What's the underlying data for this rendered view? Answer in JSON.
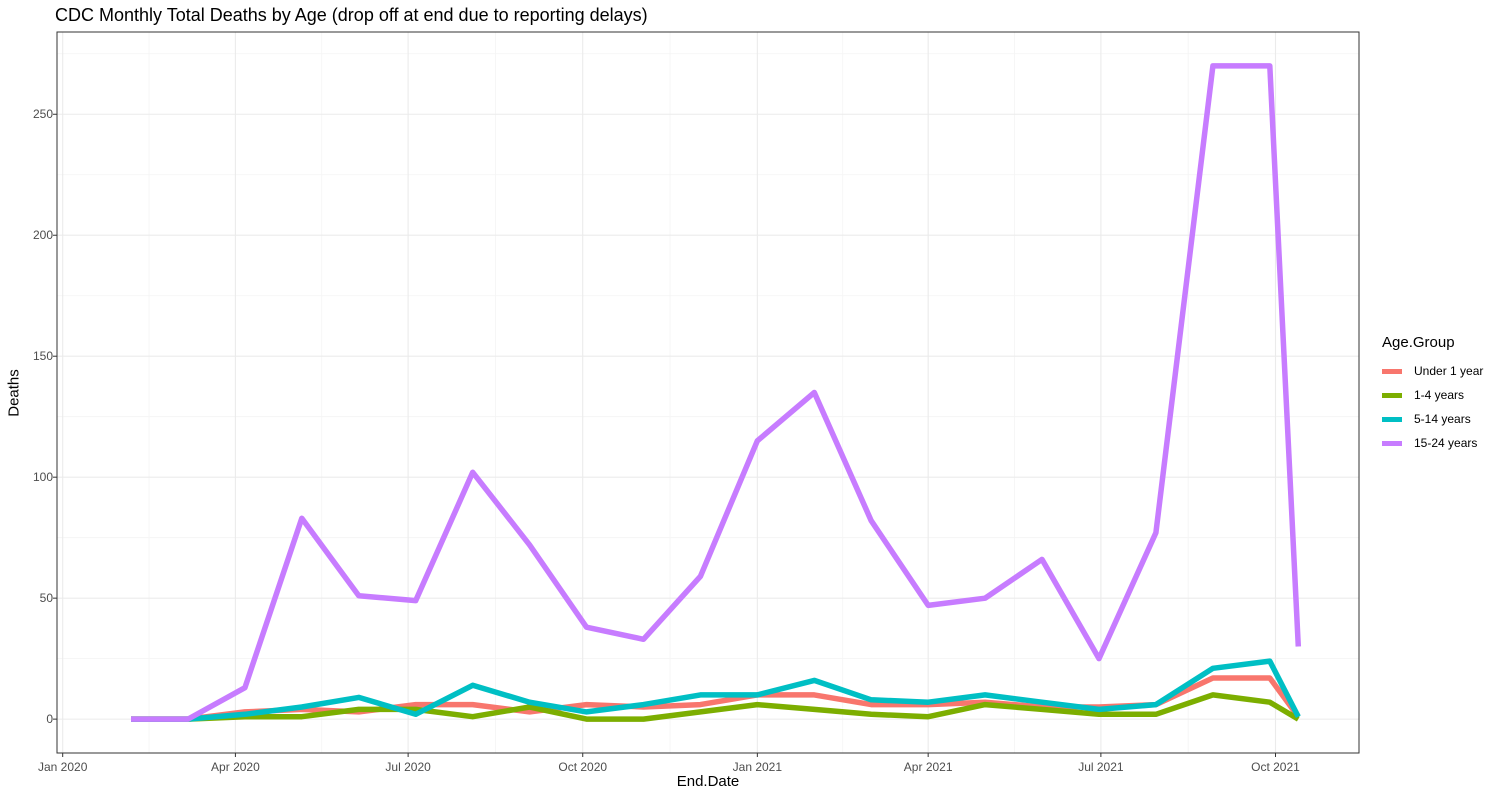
{
  "chart_data": {
    "type": "line",
    "title": "CDC Monthly Total Deaths by Age (drop off at end due to reporting delays)",
    "xlabel": "End.Date",
    "ylabel": "Deaths",
    "legend_title": "Age.Group",
    "legend_position": "right",
    "grid": true,
    "x": [
      "2020-02-06",
      "2020-03-07",
      "2020-04-06",
      "2020-05-06",
      "2020-06-05",
      "2020-07-05",
      "2020-08-04",
      "2020-09-03",
      "2020-10-03",
      "2020-11-02",
      "2020-12-02",
      "2021-01-01",
      "2021-01-31",
      "2021-03-02",
      "2021-04-01",
      "2021-05-01",
      "2021-05-31",
      "2021-06-30",
      "2021-07-30",
      "2021-08-29",
      "2021-09-28",
      "2021-10-13"
    ],
    "xlim": [
      "2019-12-29",
      "2021-11-14"
    ],
    "ylim": [
      -14,
      284
    ],
    "x_ticks": [
      {
        "date": "2020-01-01",
        "label": "Jan 2020"
      },
      {
        "date": "2020-04-01",
        "label": "Apr 2020"
      },
      {
        "date": "2020-07-01",
        "label": "Jul 2020"
      },
      {
        "date": "2020-10-01",
        "label": "Oct 2020"
      },
      {
        "date": "2021-01-01",
        "label": "Jan 2021"
      },
      {
        "date": "2021-04-01",
        "label": "Apr 2021"
      },
      {
        "date": "2021-07-01",
        "label": "Jul 2021"
      },
      {
        "date": "2021-10-01",
        "label": "Oct 2021"
      }
    ],
    "y_ticks": [
      0,
      50,
      100,
      150,
      200,
      250
    ],
    "series": [
      {
        "name": "Under 1 year",
        "color": "#F8766D",
        "values": [
          0,
          0,
          3,
          4,
          3,
          6,
          6,
          3,
          6,
          5,
          6,
          10,
          10,
          6,
          6,
          7,
          5,
          5,
          6,
          17,
          17,
          1
        ]
      },
      {
        "name": "1-4 years",
        "color": "#7CAE00",
        "values": [
          0,
          0,
          1,
          1,
          4,
          4,
          1,
          5,
          0,
          0,
          3,
          6,
          4,
          2,
          1,
          6,
          4,
          2,
          2,
          10,
          7,
          0
        ]
      },
      {
        "name": "5-14 years",
        "color": "#00BFC4",
        "values": [
          0,
          0,
          2,
          5,
          9,
          2,
          14,
          7,
          3,
          6,
          10,
          10,
          16,
          8,
          7,
          10,
          7,
          4,
          6,
          21,
          24,
          1
        ]
      },
      {
        "name": "15-24 years",
        "color": "#C77CFF",
        "values": [
          0,
          0,
          13,
          83,
          51,
          49,
          102,
          72,
          38,
          33,
          59,
          115,
          135,
          82,
          47,
          50,
          66,
          25,
          77,
          270,
          270,
          30
        ]
      }
    ]
  }
}
